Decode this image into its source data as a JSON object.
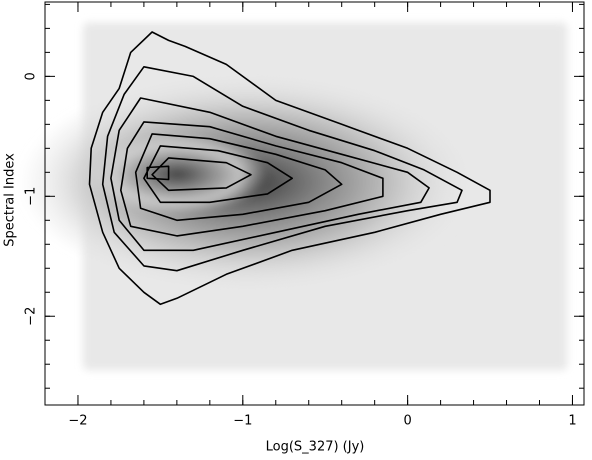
{
  "chart_data": {
    "type": "contour",
    "x_label": "Log(S_327) (Jy)",
    "y_label": "Spectral Index",
    "xlim": [
      -2.2,
      1.07
    ],
    "ylim": [
      -2.74,
      0.62
    ],
    "xticks": [
      {
        "value": -2,
        "label": "−2"
      },
      {
        "value": -1,
        "label": "−1"
      },
      0,
      1
    ],
    "yticks": [
      {
        "value": -2,
        "label": "−2"
      },
      {
        "value": -1,
        "label": "−1"
      },
      0
    ],
    "xticks_minor": [
      -2.2,
      -2.0,
      -1.8,
      -1.6,
      -1.4,
      -1.2,
      -1.0,
      -0.8,
      -0.6,
      -0.4,
      -0.2,
      0,
      0.2,
      0.4,
      0.6,
      0.8,
      1.0
    ],
    "yticks_minor": [
      -2.6,
      -2.4,
      -2.2,
      -2.0,
      -1.8,
      -1.6,
      -1.4,
      -1.2,
      -1.0,
      -0.8,
      -0.6,
      -0.4,
      -0.2,
      0,
      0.2,
      0.4,
      0.6
    ],
    "image_xlim": [
      -1.97,
      0.97
    ],
    "image_ylim": [
      -2.45,
      0.45
    ],
    "peak": [
      -1.52,
      -0.8
    ],
    "color": "#000000",
    "series": [
      {
        "x": [
          -1.55,
          -1.45,
          -1.35,
          -1.1,
          -0.8,
          -0.4,
          0,
          0.3,
          0.5,
          0.5,
          0.2,
          -0.2,
          -0.7,
          -1.1,
          -1.4,
          -1.5,
          -1.6,
          -1.75,
          -1.85,
          -1.93,
          -1.92,
          -1.85,
          -1.75,
          -1.68
        ],
        "y": [
          0.37,
          0.3,
          0.25,
          0.1,
          -0.2,
          -0.4,
          -0.6,
          -0.8,
          -0.95,
          -1.05,
          -1.15,
          -1.3,
          -1.45,
          -1.65,
          -1.85,
          -1.9,
          -1.8,
          -1.6,
          -1.3,
          -0.9,
          -0.6,
          -0.3,
          -0.1,
          0.2
        ]
      },
      {
        "x": [
          -1.6,
          -1.3,
          -1.0,
          -0.6,
          -0.2,
          0.1,
          0.33,
          0.3,
          0,
          -0.5,
          -1.0,
          -1.4,
          -1.6,
          -1.78,
          -1.85,
          -1.82,
          -1.72
        ],
        "y": [
          0.08,
          0,
          -0.25,
          -0.45,
          -0.62,
          -0.78,
          -0.95,
          -1.05,
          -1.12,
          -1.25,
          -1.45,
          -1.62,
          -1.58,
          -1.3,
          -0.9,
          -0.5,
          -0.15
        ]
      },
      {
        "x": [
          -1.62,
          -1.2,
          -0.8,
          -0.4,
          0,
          0.13,
          0.08,
          -0.3,
          -0.8,
          -1.3,
          -1.6,
          -1.75,
          -1.8,
          -1.75
        ],
        "y": [
          -0.18,
          -0.3,
          -0.5,
          -0.65,
          -0.8,
          -0.93,
          -1.05,
          -1.15,
          -1.3,
          -1.45,
          -1.45,
          -1.2,
          -0.85,
          -0.45
        ]
      },
      {
        "x": [
          -1.6,
          -1.2,
          -0.8,
          -0.4,
          -0.15,
          -0.15,
          -0.5,
          -1.0,
          -1.4,
          -1.68,
          -1.74,
          -1.7
        ],
        "y": [
          -0.38,
          -0.42,
          -0.58,
          -0.72,
          -0.85,
          -1.0,
          -1.12,
          -1.25,
          -1.33,
          -1.25,
          -0.95,
          -0.6
        ]
      },
      {
        "x": [
          -1.55,
          -1.2,
          -0.8,
          -0.5,
          -0.4,
          -0.6,
          -1.0,
          -1.4,
          -1.62,
          -1.65
        ],
        "y": [
          -0.48,
          -0.52,
          -0.65,
          -0.78,
          -0.9,
          -1.05,
          -1.15,
          -1.2,
          -1.1,
          -0.8
        ]
      },
      {
        "x": [
          -1.5,
          -1.15,
          -0.85,
          -0.7,
          -0.85,
          -1.2,
          -1.5,
          -1.6
        ],
        "y": [
          -0.58,
          -0.62,
          -0.72,
          -0.85,
          -0.98,
          -1.05,
          -1.05,
          -0.85
        ]
      },
      {
        "x": [
          -1.45,
          -1.1,
          -0.95,
          -1.1,
          -1.45,
          -1.55
        ],
        "y": [
          -0.68,
          -0.72,
          -0.82,
          -0.93,
          -0.95,
          -0.82
        ]
      },
      {
        "x": [
          -1.58,
          -1.45,
          -1.45,
          -1.58
        ],
        "y": [
          -0.76,
          -0.75,
          -0.86,
          -0.85
        ]
      }
    ]
  }
}
